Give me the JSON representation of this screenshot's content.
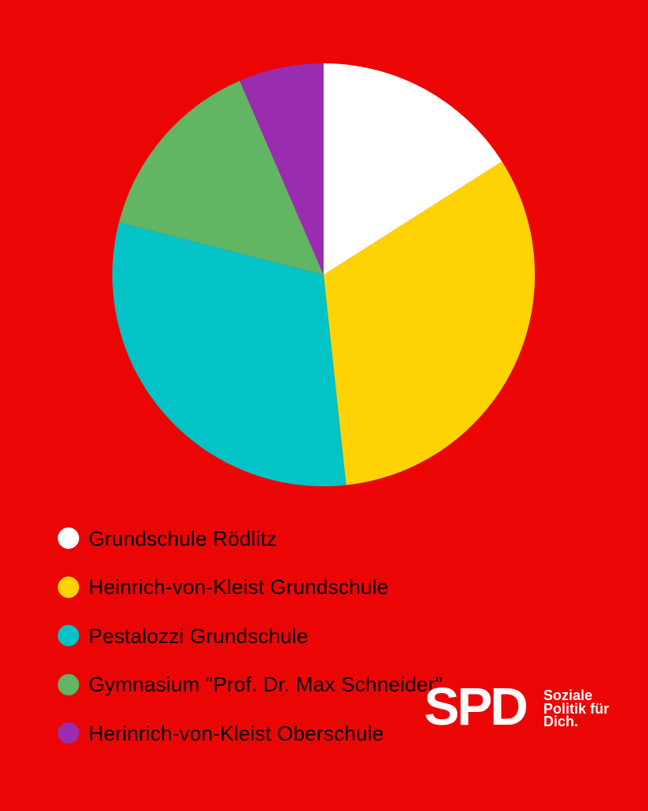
{
  "colors": {
    "background": "#EC0505",
    "legend_text": "#000000",
    "logo_text": "#FFFFFF"
  },
  "chart_data": {
    "type": "pie",
    "categories": [
      "Grundschule Rödlitz",
      "Heinrich-von-Kleist Grundschule",
      "Pestalozzi Grundschule",
      "Gymnasium \"Prof. Dr. Max Schneider\"",
      "Herinrich-von-Kleist Oberschule"
    ],
    "values_percent": [
      16.0,
      32.3,
      30.7,
      14.5,
      6.5
    ],
    "slice_angles_deg": [
      57.5,
      116.4,
      110.6,
      52.3,
      23.2
    ],
    "colors": [
      "#FFFFFF",
      "#FFD303",
      "#04C3C6",
      "#61B563",
      "#9A2CB0"
    ],
    "start_position": "12-oclock",
    "direction": "clockwise",
    "title": "",
    "data_labels_shown": false,
    "legend_position": "bottom-left"
  },
  "legend": {
    "items": [
      {
        "label": "Grundschule Rödlitz",
        "color": "#FFFFFF"
      },
      {
        "label": "Heinrich-von-Kleist Grundschule",
        "color": "#FFD303"
      },
      {
        "label": "Pestalozzi Grundschule",
        "color": "#04C3C6"
      },
      {
        "label": "Gymnasium \"Prof. Dr. Max Schneider\"",
        "color": "#61B563"
      },
      {
        "label": "Herinrich-von-Kleist Oberschule",
        "color": "#9A2CB0"
      }
    ]
  },
  "branding": {
    "logo_text": "SPD",
    "tagline": "Soziale\nPolitik für\nDich."
  }
}
